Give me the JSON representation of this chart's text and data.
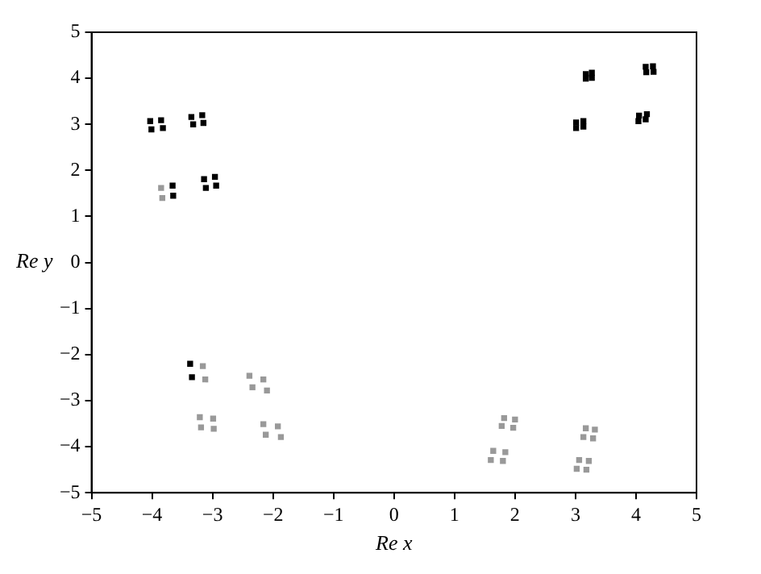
{
  "chart_data": {
    "type": "scatter",
    "xlabel": "Re x",
    "ylabel": "Re y",
    "xlim": [
      -5,
      5
    ],
    "ylim": [
      -5,
      5
    ],
    "xticks": [
      -5,
      -4,
      -3,
      -2,
      -1,
      0,
      1,
      2,
      3,
      4,
      5
    ],
    "yticks": [
      -5,
      -4,
      -3,
      -2,
      -1,
      0,
      1,
      2,
      3,
      4,
      5
    ],
    "grid": false,
    "legend": false,
    "marker": "square",
    "series": [
      {
        "color": "#000000",
        "x": [
          -4.03,
          -3.85,
          -4.01,
          -3.82,
          -3.35,
          -3.17,
          -3.32,
          -3.15,
          -3.66,
          -3.65,
          -3.14,
          -2.96,
          -3.11,
          -2.94,
          3.17,
          3.27,
          3.17,
          3.27,
          4.16,
          4.28,
          4.17,
          4.29,
          3.01,
          3.13,
          3.01,
          3.13,
          4.05,
          4.18,
          4.04,
          4.16,
          -3.37,
          -3.34
        ],
        "values": [
          3.07,
          3.09,
          2.89,
          2.92,
          3.16,
          3.2,
          3.0,
          3.03,
          1.67,
          1.45,
          1.81,
          1.86,
          1.62,
          1.67,
          4.09,
          4.12,
          3.99,
          4.01,
          4.25,
          4.26,
          4.13,
          4.14,
          3.04,
          3.07,
          2.92,
          2.95,
          3.19,
          3.22,
          3.07,
          3.11,
          -2.2,
          -2.49
        ]
      },
      {
        "color": "#999999",
        "x": [
          -3.85,
          -3.83,
          -3.16,
          -3.12,
          -2.39,
          -2.16,
          -2.34,
          -2.1,
          -3.21,
          -2.99,
          -3.19,
          -2.98,
          -2.16,
          -1.92,
          -2.12,
          -1.87,
          1.82,
          2.0,
          1.78,
          1.97,
          3.17,
          3.32,
          3.13,
          3.29,
          1.64,
          1.84,
          1.6,
          1.8,
          3.06,
          3.22,
          3.02,
          3.18
        ],
        "values": [
          1.62,
          1.4,
          -2.25,
          -2.54,
          -2.46,
          -2.54,
          -2.71,
          -2.78,
          -3.36,
          -3.39,
          -3.58,
          -3.61,
          -3.51,
          -3.56,
          -3.74,
          -3.79,
          -3.38,
          -3.41,
          -3.55,
          -3.59,
          -3.6,
          -3.63,
          -3.79,
          -3.82,
          -4.09,
          -4.12,
          -4.29,
          -4.31,
          -4.29,
          -4.31,
          -4.48,
          -4.5
        ]
      }
    ]
  }
}
